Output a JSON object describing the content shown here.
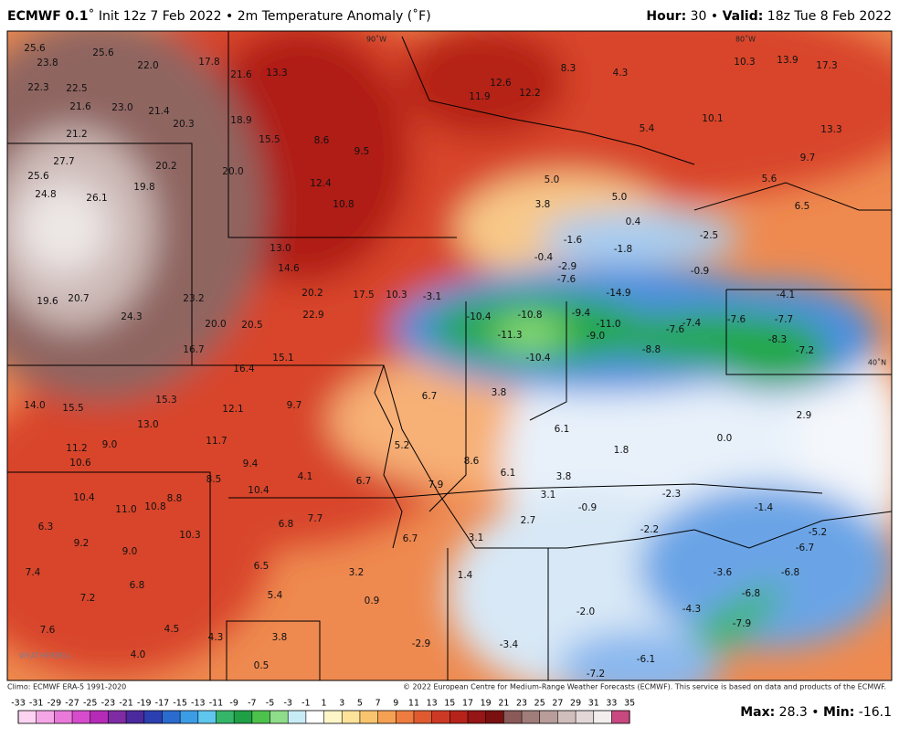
{
  "header": {
    "model": "ECMWF 0.1",
    "run": "˚ Init 12z 7 Feb 2022 • 2m Temperature Anomaly (˚F)",
    "hour_label": "Hour:",
    "hour": "30 •",
    "valid_label": "Valid:",
    "valid": "18z Tue 8 Feb 2022"
  },
  "map": {
    "grid_labels": [
      "90˚W",
      "80˚W",
      "40˚N"
    ],
    "logo": "WEATHERBELL",
    "labels": [
      "25.6",
      "23.8",
      "25.6",
      "22.0",
      "22.3",
      "22.5",
      "21.6",
      "23.0",
      "21.4",
      "20.3",
      "21.2",
      "27.7",
      "25.6",
      "24.8",
      "26.1",
      "19.8",
      "20.2",
      "20.0",
      "17.8",
      "21.6",
      "13.3",
      "18.9",
      "15.5",
      "8.6",
      "9.5",
      "12.4",
      "10.8",
      "13.0",
      "14.6",
      "20.2",
      "17.5",
      "10.3",
      "22.9",
      "20.0",
      "20.5",
      "16.7",
      "15.1",
      "16.4",
      "19.6",
      "20.7",
      "24.3",
      "23.2",
      "14.0",
      "15.5",
      "15.3",
      "13.0",
      "11.2",
      "12.1",
      "9.7",
      "11.7",
      "9.4",
      "4.1",
      "6.7",
      "5.2",
      "8.6",
      "6.1",
      "3.8",
      "1.8",
      "6.1",
      "3.8",
      "6.7",
      "-3.1",
      "-10.4",
      "-11.3",
      "-10.8",
      "-10.4",
      "-9.4",
      "-11.0",
      "-9.0",
      "-8.8",
      "-7.6",
      "-7.4",
      "-7.6",
      "-7.7",
      "-8.3",
      "-7.2",
      "-14.9",
      "-7.6",
      "-2.9",
      "-0.4",
      "-1.6",
      "-1.8",
      "-2.5",
      "-0.9",
      "5.0",
      "3.8",
      "5.0",
      "0.4",
      "12.6",
      "12.2",
      "11.9",
      "8.3",
      "4.3",
      "10.3",
      "13.9",
      "17.3",
      "13.3",
      "9.7",
      "10.1",
      "5.4",
      "5.6",
      "6.5",
      "-4.1",
      "2.9",
      "0.0",
      "-2.3",
      "-1.4",
      "-0.9",
      "2.7",
      "3.1",
      "-2.2",
      "-5.2",
      "-6.7",
      "-6.8",
      "-6.8",
      "-7.9",
      "-6.1",
      "-7.2",
      "-4.3",
      "-3.6",
      "-2.0",
      "-3.4",
      "1.4",
      "0.9",
      "3.2",
      "6.7",
      "7.7",
      "6.8",
      "6.5",
      "5.4",
      "3.8",
      "4.3",
      "4.5",
      "4.0",
      "0.5",
      "-2.9",
      "7.6",
      "7.4",
      "7.2",
      "6.8",
      "9.0",
      "9.2",
      "6.3",
      "10.4",
      "11.0",
      "10.8",
      "10.3",
      "8.8",
      "9.0",
      "10.6",
      "8.5",
      "10.4",
      "7.9",
      "3.1"
    ]
  },
  "footer": {
    "climo": "Climo: ECMWF ERA-5 1991-2020",
    "credit": "© 2022 European Centre for Medium-Range Weather Forecasts (ECMWF). This service is based on data and products of the ECMWF.",
    "max_label": "Max:",
    "max": "28.3 •",
    "min_label": "Min:",
    "min": "-16.1"
  },
  "colorbar": {
    "ticks": [
      -33,
      -31,
      -29,
      -27,
      -25,
      -23,
      -21,
      -19,
      -17,
      -15,
      -13,
      -11,
      -9,
      -7,
      -5,
      -3,
      -1,
      1,
      3,
      5,
      7,
      9,
      11,
      13,
      15,
      17,
      19,
      21,
      23,
      25,
      27,
      29,
      31,
      33,
      35
    ],
    "colors": [
      "#fcd3f0",
      "#f5a6e6",
      "#e97ada",
      "#d64ccd",
      "#b52bb8",
      "#7f2ba3",
      "#4b2a9e",
      "#2c3fb0",
      "#2a6bd0",
      "#3d9ce6",
      "#5fc6ee",
      "#35b56a",
      "#1fa046",
      "#4cc24c",
      "#8fdc8a",
      "#c8ecf5",
      "#ffffff",
      "#fff6c8",
      "#fde39a",
      "#f9c46e",
      "#f5a153",
      "#ee7c40",
      "#e05a30",
      "#cc3a25",
      "#b5231b",
      "#961515",
      "#7a1010",
      "#8a5a58",
      "#a07d7a",
      "#b89d9a",
      "#d0bebc",
      "#e3d8d7",
      "#f3eeee",
      "#c84880"
    ]
  }
}
